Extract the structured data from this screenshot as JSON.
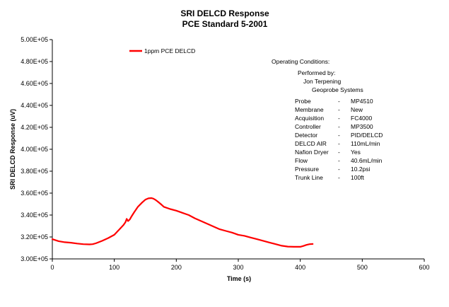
{
  "chart_data": {
    "type": "line",
    "title": "SRI DELCD Response",
    "subtitle": "PCE Standard 5-2001",
    "xlabel": "Time (s)",
    "ylabel": "SRI DELCD Response (uV)",
    "xlim": [
      0,
      600
    ],
    "ylim": [
      300000,
      500000
    ],
    "x_ticks": [
      0,
      100,
      200,
      300,
      400,
      500,
      600
    ],
    "y_ticks": [
      300000,
      320000,
      340000,
      360000,
      380000,
      400000,
      420000,
      440000,
      460000,
      480000,
      500000
    ],
    "x_tick_labels": [
      "0",
      "100",
      "200",
      "300",
      "400",
      "500",
      "600"
    ],
    "y_tick_labels": [
      "3.00E+05",
      "3.20E+05",
      "3.40E+05",
      "3.60E+05",
      "3.80E+05",
      "4.00E+05",
      "4.20E+05",
      "4.40E+05",
      "4.60E+05",
      "4.80E+05",
      "5.00E+05"
    ],
    "grid": false,
    "legend_position": "top-left",
    "series": [
      {
        "name": "1ppm PCE DELCD",
        "color": "#ff0000",
        "x": [
          0,
          10,
          20,
          30,
          40,
          50,
          60,
          65,
          70,
          80,
          90,
          100,
          110,
          115,
          118,
          120,
          122,
          125,
          128,
          132,
          138,
          145,
          150,
          155,
          160,
          163,
          166,
          170,
          175,
          180,
          190,
          200,
          210,
          220,
          230,
          240,
          250,
          260,
          270,
          280,
          290,
          300,
          310,
          320,
          330,
          340,
          350,
          360,
          370,
          380,
          390,
          400,
          405,
          410,
          415,
          420
        ],
        "values": [
          318000,
          316200,
          315200,
          314800,
          314000,
          313400,
          313200,
          313400,
          314200,
          316400,
          319000,
          322000,
          328000,
          331000,
          333500,
          336500,
          334500,
          336000,
          339000,
          342500,
          347500,
          351500,
          354000,
          355200,
          355500,
          355000,
          354000,
          352300,
          350000,
          347500,
          345500,
          344000,
          342000,
          340000,
          337000,
          334500,
          332000,
          329500,
          327000,
          325500,
          324000,
          322000,
          321000,
          319500,
          318000,
          316500,
          315000,
          313500,
          312000,
          311200,
          311000,
          311000,
          311800,
          312800,
          313400,
          313600
        ]
      }
    ],
    "annotations": {
      "heading": "Operating Conditions:",
      "performed_by_label": "Performed by:",
      "person": "Jon Terpening",
      "company": "Geoprobe Systems",
      "conditions": [
        {
          "param": "Probe",
          "sep": "-",
          "value": "MP4510"
        },
        {
          "param": "Membrane",
          "sep": "-",
          "value": "New"
        },
        {
          "param": "Acquisition",
          "sep": "-",
          "value": "FC4000"
        },
        {
          "param": "Controller",
          "sep": "-",
          "value": "MP3500"
        },
        {
          "param": "Detector",
          "sep": "-",
          "value": "PID/DELCD"
        },
        {
          "param": "DELCD AIR",
          "sep": "-",
          "value": "110mL/min"
        },
        {
          "param": "Nafion Dryer",
          "sep": "-",
          "value": "Yes"
        },
        {
          "param": "Flow",
          "sep": "-",
          "value": "40.6mL/min"
        },
        {
          "param": "Pressure",
          "sep": "-",
          "value": "10.2psi"
        },
        {
          "param": "Trunk Line",
          "sep": "-",
          "value": "100ft"
        }
      ]
    }
  }
}
